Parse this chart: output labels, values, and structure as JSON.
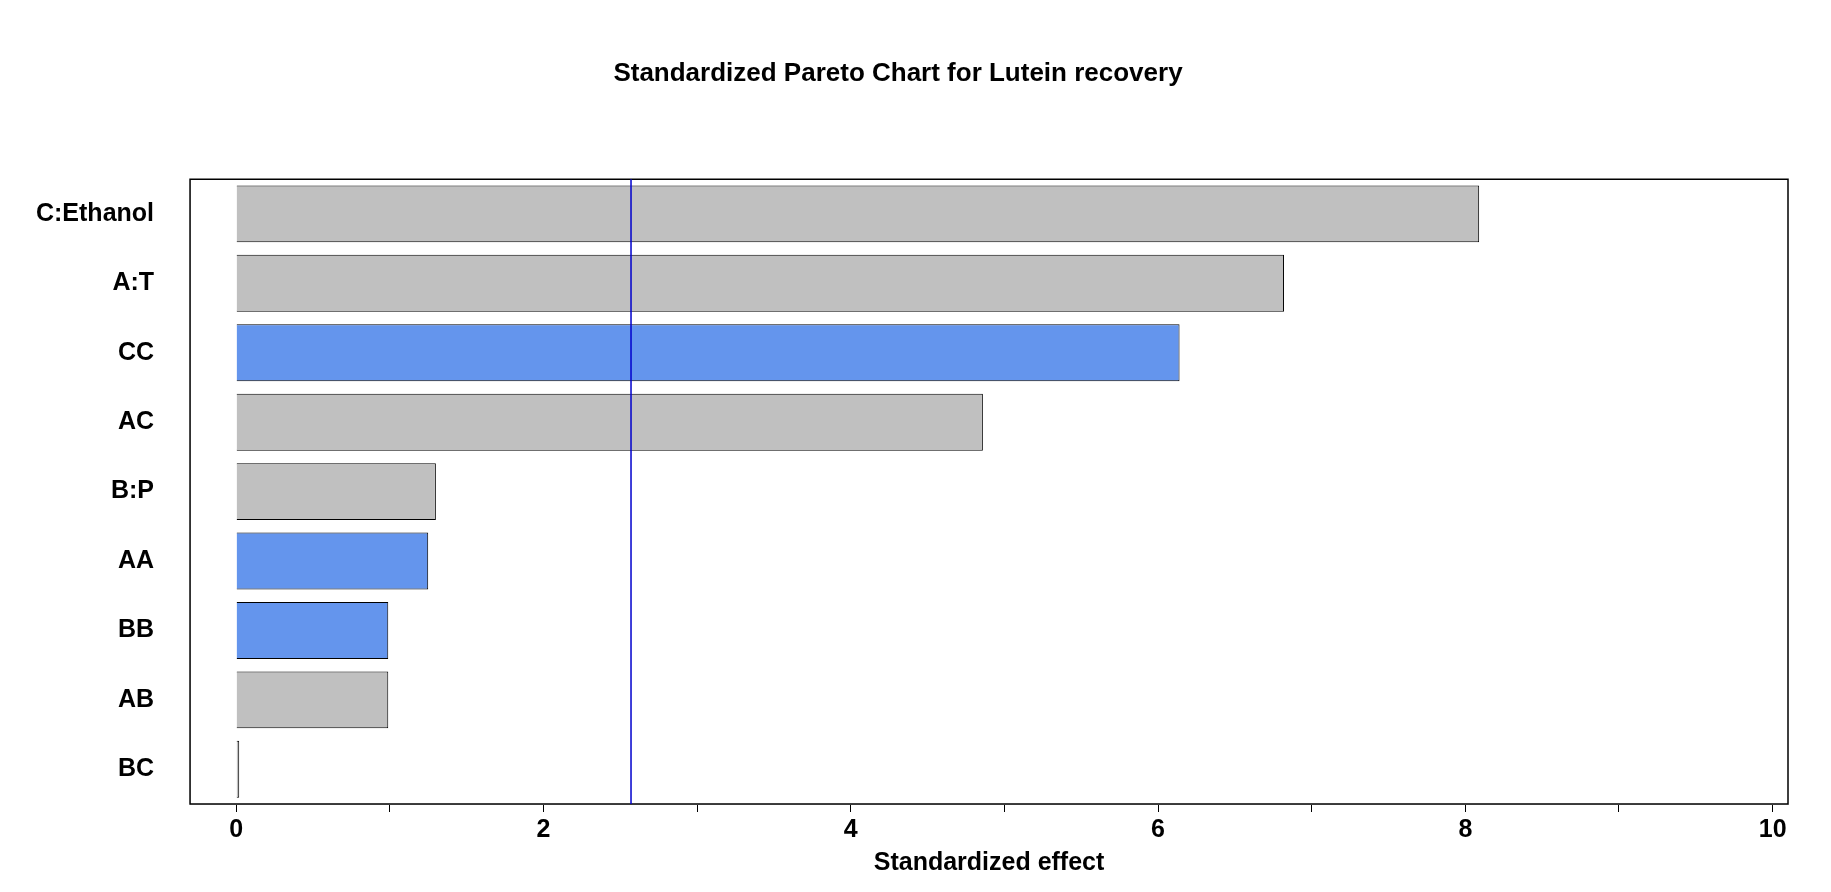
{
  "chart_data": {
    "type": "bar",
    "orientation": "horizontal",
    "title": "Standardized Pareto Chart for Lutein recovery",
    "xlabel": "Standardized effect",
    "categories": [
      "C:Ethanol",
      "A:T",
      "CC",
      "AC",
      "B:P",
      "AA",
      "BB",
      "AB",
      "BC"
    ],
    "values": [
      8.09,
      6.82,
      6.14,
      4.86,
      1.3,
      1.25,
      0.99,
      0.99,
      0.02
    ],
    "colors": [
      "#c0c0c0",
      "#c0c0c0",
      "#6495ed",
      "#c0c0c0",
      "#c0c0c0",
      "#6495ed",
      "#6495ed",
      "#c0c0c0",
      "#c0c0c0"
    ],
    "xlim": [
      -0.3,
      10.1
    ],
    "xticks": [
      0,
      {
        "value": 1,
        "label": null
      },
      2,
      {
        "value": 3,
        "label": null
      },
      4,
      {
        "value": 5,
        "label": null
      },
      6,
      {
        "value": 7,
        "label": null
      },
      8,
      {
        "value": 9,
        "label": null
      },
      10
    ],
    "ref_lines": [
      {
        "axis": "x",
        "value": 2.57,
        "color": "#0000cd"
      }
    ],
    "grid": false,
    "legend": false
  }
}
